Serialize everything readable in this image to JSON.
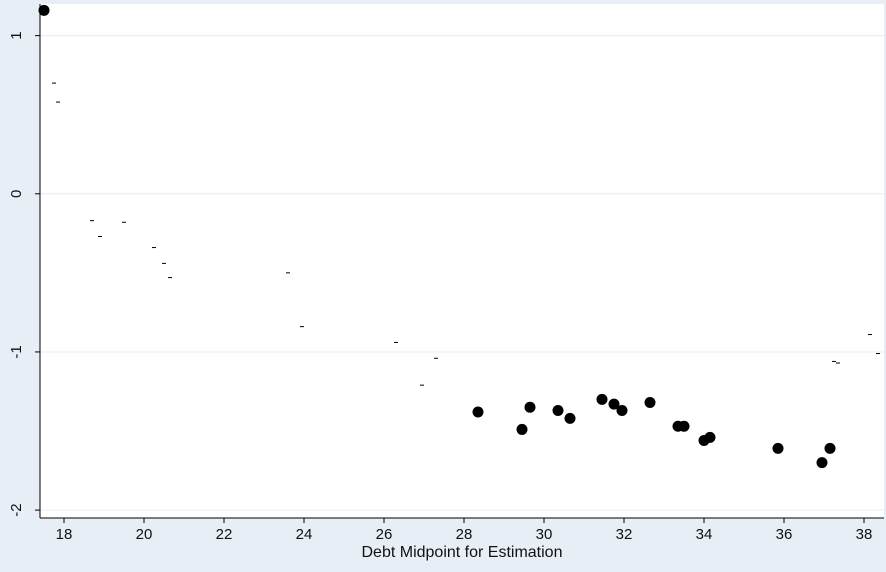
{
  "chart_data": {
    "type": "scatter",
    "title": "",
    "xlabel": "Debt Midpoint for Estimation",
    "ylabel": "",
    "xlim": [
      17.4,
      38.5
    ],
    "ylim": [
      -2.05,
      1.2
    ],
    "x_ticks": [
      18,
      20,
      22,
      24,
      26,
      28,
      30,
      32,
      34,
      36,
      38
    ],
    "x_tick_labels": [
      "18",
      "20",
      "22",
      "24",
      "26",
      "28",
      "30",
      "32",
      "34",
      "36",
      "38"
    ],
    "y_ticks": [
      1,
      0,
      -1,
      -2
    ],
    "y_tick_labels": [
      "1",
      "0",
      "-1",
      "-2"
    ],
    "grid": "horizontal",
    "background_color": "#e7eef5",
    "plot_background_color": "#ffffff",
    "marker_color": "#000000",
    "series": [
      {
        "marker": "filled-circle",
        "points": [
          [
            17.5,
            1.16
          ],
          [
            28.35,
            -1.38
          ],
          [
            29.45,
            -1.49
          ],
          [
            29.65,
            -1.35
          ],
          [
            30.35,
            -1.37
          ],
          [
            30.65,
            -1.42
          ],
          [
            31.45,
            -1.3
          ],
          [
            31.75,
            -1.33
          ],
          [
            31.95,
            -1.37
          ],
          [
            32.65,
            -1.32
          ],
          [
            33.35,
            -1.47
          ],
          [
            33.5,
            -1.47
          ],
          [
            34.0,
            -1.56
          ],
          [
            34.15,
            -1.54
          ],
          [
            35.85,
            -1.61
          ],
          [
            36.95,
            -1.7
          ],
          [
            37.15,
            -1.61
          ]
        ]
      },
      {
        "marker": "tiny-dash",
        "points": [
          [
            17.75,
            0.7
          ],
          [
            17.85,
            0.58
          ],
          [
            18.7,
            -0.17
          ],
          [
            18.9,
            -0.27
          ],
          [
            19.5,
            -0.18
          ],
          [
            20.25,
            -0.34
          ],
          [
            20.5,
            -0.44
          ],
          [
            20.65,
            -0.53
          ],
          [
            23.6,
            -0.5
          ],
          [
            23.95,
            -0.84
          ],
          [
            26.3,
            -0.94
          ],
          [
            26.95,
            -1.21
          ],
          [
            27.3,
            -1.04
          ],
          [
            37.25,
            -1.06
          ],
          [
            37.35,
            -1.07
          ],
          [
            38.15,
            -0.89
          ],
          [
            38.35,
            -1.01
          ]
        ]
      }
    ]
  }
}
